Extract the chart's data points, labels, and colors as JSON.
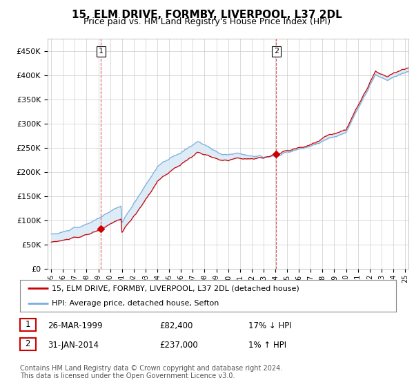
{
  "title": "15, ELM DRIVE, FORMBY, LIVERPOOL, L37 2DL",
  "subtitle": "Price paid vs. HM Land Registry's House Price Index (HPI)",
  "legend_line1": "15, ELM DRIVE, FORMBY, LIVERPOOL, L37 2DL (detached house)",
  "legend_line2": "HPI: Average price, detached house, Sefton",
  "sale1_date": "26-MAR-1999",
  "sale1_price": "£82,400",
  "sale1_hpi": "17% ↓ HPI",
  "sale2_date": "31-JAN-2014",
  "sale2_price": "£237,000",
  "sale2_hpi": "1% ↑ HPI",
  "footnote": "Contains HM Land Registry data © Crown copyright and database right 2024.\nThis data is licensed under the Open Government Licence v3.0.",
  "hpi_color": "#7aaddc",
  "price_color": "#cc0000",
  "fill_color": "#d6e8f5",
  "vline_color": "#dd4444",
  "ylim": [
    0,
    475000
  ],
  "yticks": [
    0,
    50000,
    100000,
    150000,
    200000,
    250000,
    300000,
    350000,
    400000,
    450000
  ],
  "background": "#ffffff",
  "plot_bg": "#ffffff",
  "grid_color": "#cccccc",
  "sale1_year": 1999.23,
  "sale2_year": 2014.08,
  "sale1_price_val": 82400,
  "sale2_price_val": 237000
}
